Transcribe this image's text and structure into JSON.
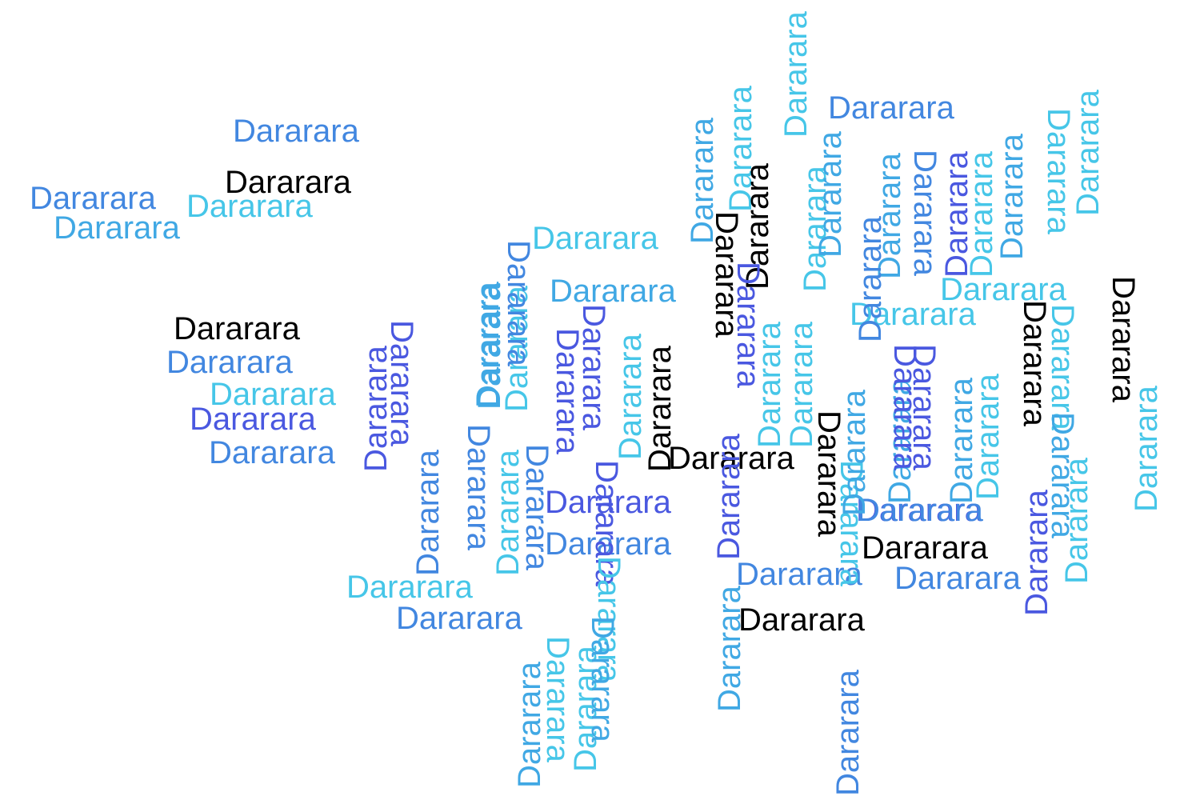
{
  "word": "Dararara",
  "palette": {
    "black": "#000000",
    "blue": "#4287e0",
    "sky": "#40a8e4",
    "cyan": "#46c6e8",
    "indigo": "#4a58e0"
  },
  "words": [
    {
      "text": "Dararara",
      "color": "blue",
      "vertical": false
    },
    {
      "text": "Dararara",
      "color": "black",
      "vertical": false
    },
    {
      "text": "Dararara",
      "color": "blue",
      "vertical": false
    },
    {
      "text": "Dararara",
      "color": "cyan",
      "vertical": false
    },
    {
      "text": "Dararara",
      "color": "sky",
      "vertical": false
    },
    {
      "text": "Dararara",
      "color": "black",
      "vertical": false
    },
    {
      "text": "Dararara",
      "color": "blue",
      "vertical": false
    },
    {
      "text": "Dararara",
      "color": "cyan",
      "vertical": false
    },
    {
      "text": "Dararara",
      "color": "indigo",
      "vertical": false
    },
    {
      "text": "Dararara",
      "color": "blue",
      "vertical": false
    },
    {
      "text": "Dararara",
      "color": "cyan",
      "vertical": false
    },
    {
      "text": "Dararara",
      "color": "blue",
      "vertical": false
    },
    {
      "text": "Dararara",
      "color": "cyan",
      "vertical": false
    },
    {
      "text": "Dararara",
      "color": "sky",
      "vertical": false
    },
    {
      "text": "Dararara",
      "color": "indigo",
      "vertical": false
    },
    {
      "text": "Dararara",
      "color": "blue",
      "vertical": false
    },
    {
      "text": "Dararara",
      "color": "black",
      "vertical": false
    },
    {
      "text": "Dararara",
      "color": "blue",
      "vertical": false
    },
    {
      "text": "Dararara",
      "color": "cyan",
      "vertical": false
    },
    {
      "text": "Dararara",
      "color": "cyan",
      "vertical": false
    },
    {
      "text": "Dararara",
      "color": "indigo",
      "vertical": false
    },
    {
      "text": "Dararara",
      "color": "black",
      "vertical": false
    },
    {
      "text": "Dararara",
      "color": "blue",
      "vertical": false
    },
    {
      "text": "Dararara",
      "color": "blue",
      "vertical": false
    },
    {
      "text": "Dararara",
      "color": "black",
      "vertical": false
    },
    {
      "text": "Dararara",
      "color": "blue",
      "vertical": false
    },
    {
      "text": "Dararara",
      "color": "sky",
      "vertical": true
    },
    {
      "text": "Dararara",
      "color": "cyan",
      "vertical": true
    },
    {
      "text": "Dararara",
      "color": "black",
      "vertical": true
    },
    {
      "text": "Dararara",
      "color": "cyan",
      "vertical": true
    },
    {
      "text": "Dararara",
      "color": "sky",
      "vertical": true
    },
    {
      "text": "Dararara",
      "color": "blue",
      "vertical": true
    },
    {
      "text": "Dararara",
      "color": "indigo",
      "vertical": true
    },
    {
      "text": "Dararara",
      "color": "cyan",
      "vertical": true
    },
    {
      "text": "Dararara",
      "color": "sky",
      "vertical": true
    },
    {
      "text": "Dararara",
      "color": "cyan",
      "vertical": true
    },
    {
      "text": "Dararara",
      "color": "cyan",
      "vertical": true
    },
    {
      "text": "Dararara",
      "color": "black",
      "vertical": true
    },
    {
      "text": "Dararara",
      "color": "indigo",
      "vertical": true
    },
    {
      "text": "Dararara",
      "color": "cyan",
      "vertical": true
    },
    {
      "text": "Dararara",
      "color": "sky",
      "vertical": true
    },
    {
      "text": "Dararara",
      "color": "sky",
      "vertical": true
    },
    {
      "text": "Dararara",
      "color": "cyan",
      "vertical": true
    },
    {
      "text": "Dararara",
      "color": "blue",
      "vertical": true
    },
    {
      "text": "Dararara",
      "color": "indigo",
      "vertical": true
    },
    {
      "text": "Dararara",
      "color": "cyan",
      "vertical": true
    },
    {
      "text": "Dararara",
      "color": "black",
      "vertical": true
    },
    {
      "text": "Dararara",
      "color": "indigo",
      "vertical": true
    },
    {
      "text": "Dararara",
      "color": "cyan",
      "vertical": true
    },
    {
      "text": "Dararara",
      "color": "cyan",
      "vertical": true
    },
    {
      "text": "Dararara",
      "color": "blue",
      "vertical": true
    },
    {
      "text": "Dararara",
      "color": "sky",
      "vertical": true
    },
    {
      "text": "Dararara",
      "color": "sky",
      "vertical": true
    },
    {
      "text": "Dararara",
      "color": "cyan",
      "vertical": true
    },
    {
      "text": "Dararara",
      "color": "black",
      "vertical": true
    },
    {
      "text": "Dararara",
      "color": "cyan",
      "vertical": true
    },
    {
      "text": "Dararara",
      "color": "cyan",
      "vertical": true
    },
    {
      "text": "Dararara",
      "color": "black",
      "vertical": true
    },
    {
      "text": "Dararara",
      "color": "cyan",
      "vertical": true
    },
    {
      "text": "Dararara",
      "color": "indigo",
      "vertical": true
    },
    {
      "text": "Dararara",
      "color": "sky",
      "vertical": true
    },
    {
      "text": "Dararara",
      "color": "black",
      "vertical": true
    },
    {
      "text": "Dararara",
      "color": "cyan",
      "vertical": true
    },
    {
      "text": "Dararara",
      "color": "indigo",
      "vertical": true
    },
    {
      "text": "Dararara",
      "color": "indigo",
      "vertical": true
    },
    {
      "text": "Dararara",
      "color": "sky",
      "vertical": true
    },
    {
      "text": "Dararara",
      "color": "indigo",
      "vertical": true
    },
    {
      "text": "Dararara",
      "color": "indigo",
      "vertical": true
    },
    {
      "text": "Dararara",
      "color": "blue",
      "vertical": true
    },
    {
      "text": "Dararara",
      "color": "blue",
      "vertical": true
    },
    {
      "text": "Dararara",
      "color": "sky",
      "vertical": true
    },
    {
      "text": "Dararara",
      "color": "cyan",
      "vertical": true
    },
    {
      "text": "Dararara",
      "color": "blue",
      "vertical": true
    },
    {
      "text": "Dararara",
      "color": "indigo",
      "vertical": true
    },
    {
      "text": "Dararara",
      "color": "sky",
      "vertical": true
    },
    {
      "text": "Dararara",
      "color": "indigo",
      "vertical": true
    },
    {
      "text": "Dararara",
      "color": "cyan",
      "vertical": true
    },
    {
      "text": "Dararara",
      "color": "sky",
      "vertical": true
    },
    {
      "text": "Dararara",
      "color": "cyan",
      "vertical": true
    },
    {
      "text": "Dararara",
      "color": "cyan",
      "vertical": true
    },
    {
      "text": "Dararara",
      "color": "sky",
      "vertical": true
    },
    {
      "text": "Dararara",
      "color": "blue",
      "vertical": true
    }
  ]
}
